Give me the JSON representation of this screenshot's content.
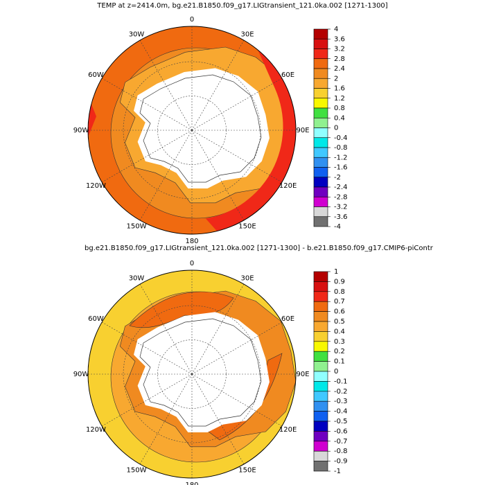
{
  "panels": [
    {
      "title": "TEMP at z=2414.0m, bg.e21.B1850.f09_g17.LIGtransient_121.0ka.002 [1271-1300]",
      "lon_labels": [
        "0",
        "30E",
        "60E",
        "90E",
        "120E",
        "150E",
        "180",
        "150W",
        "120W",
        "90W",
        "60W",
        "30W"
      ],
      "colorbar": {
        "labels": [
          "4",
          "3.6",
          "3.2",
          "2.8",
          "2.4",
          "2",
          "1.6",
          "1.2",
          "0.8",
          "0.4",
          "0",
          "-0.4",
          "-0.8",
          "-1.2",
          "-1.6",
          "-2",
          "-2.4",
          "-2.8",
          "-3.2",
          "-3.6",
          "-4"
        ],
        "colors": [
          "#b40000",
          "#d81010",
          "#f02818",
          "#f06a10",
          "#f08a20",
          "#f8a830",
          "#f8d030",
          "#f8f800",
          "#40e040",
          "#90f090",
          "#90ffff",
          "#00e8e8",
          "#40c8ff",
          "#3090f0",
          "#1060f0",
          "#0000c0",
          "#7000c0",
          "#d000d0",
          "#d8d8d8",
          "#707070"
        ]
      }
    },
    {
      "title": "bg.e21.B1850.f09_g17.LIGtransient_121.0ka.002 [1271-1300] - b.e21.B1850.f09_g17.CMIP6-piContr",
      "lon_labels": [
        "0",
        "30E",
        "60E",
        "90E",
        "120E",
        "150E",
        "180",
        "150W",
        "120W",
        "90W",
        "60W",
        "30W"
      ],
      "colorbar": {
        "labels": [
          "1",
          "0.9",
          "0.8",
          "0.7",
          "0.6",
          "0.5",
          "0.4",
          "0.3",
          "0.2",
          "0.1",
          "0",
          "-0.1",
          "-0.2",
          "-0.3",
          "-0.4",
          "-0.5",
          "-0.6",
          "-0.7",
          "-0.8",
          "-0.9",
          "-1"
        ],
        "colors": [
          "#b40000",
          "#d81010",
          "#f02818",
          "#f06a10",
          "#f08a20",
          "#f8a830",
          "#f8d030",
          "#f8f800",
          "#40e040",
          "#90f090",
          "#90ffff",
          "#00e8e8",
          "#40c8ff",
          "#3090f0",
          "#1060f0",
          "#0000c0",
          "#7000c0",
          "#d000d0",
          "#d8d8d8",
          "#707070"
        ]
      }
    }
  ]
}
